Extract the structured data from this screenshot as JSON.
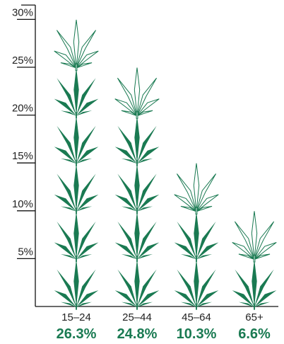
{
  "chart_data": {
    "type": "bar",
    "title": "",
    "xlabel": "",
    "ylabel": "",
    "categories": [
      "15–24",
      "25–44",
      "45–64",
      "65+"
    ],
    "values": [
      26.3,
      24.8,
      10.3,
      6.6
    ],
    "value_labels": [
      "26.3%",
      "24.8%",
      "10.3%",
      "6.6%"
    ],
    "y_ticks": [
      5,
      10,
      15,
      20,
      25,
      30
    ],
    "y_tick_labels": [
      "5%",
      "10%",
      "15%",
      "20%",
      "25%",
      "30%"
    ],
    "ylim": [
      0,
      31.5
    ],
    "unit_per_icon": 5,
    "icon": "cannabis-leaf-icon",
    "grid": false,
    "colors": {
      "leaf": "#1a7a52",
      "label": "#1a7a52",
      "axis": "#111111"
    }
  }
}
